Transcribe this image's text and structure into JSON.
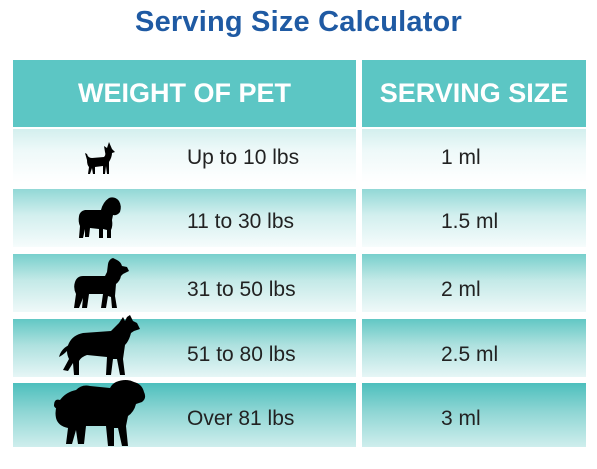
{
  "title": "Serving Size Calculator",
  "table": {
    "headers": {
      "weight": "WEIGHT OF PET",
      "serving": "SERVING SIZE"
    },
    "rows": [
      {
        "weight": "Up to 10 lbs",
        "serving": "1 ml",
        "icon": "small-dog-icon"
      },
      {
        "weight": "11 to 30 lbs",
        "serving": "1.5 ml",
        "icon": "pug-dog-icon"
      },
      {
        "weight": "31 to 50 lbs",
        "serving": "2 ml",
        "icon": "terrier-dog-icon"
      },
      {
        "weight": "51 to 80 lbs",
        "serving": "2.5 ml",
        "icon": "husky-dog-icon"
      },
      {
        "weight": "Over 81 lbs",
        "serving": "3 ml",
        "icon": "fluffy-dog-icon"
      }
    ]
  },
  "colors": {
    "title": "#1f5aa3",
    "header_bg": "#5cc6c4",
    "header_text": "#ffffff",
    "dog_silhouette": "#000000"
  }
}
